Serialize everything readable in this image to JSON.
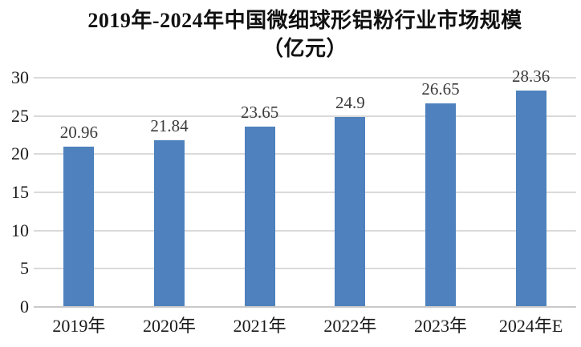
{
  "chart_data": {
    "type": "bar",
    "title": "2019年-2024年中国微细球形铝粉行业市场规模",
    "subtitle": "（亿元）",
    "categories": [
      "2019年",
      "2020年",
      "2021年",
      "2022年",
      "2023年",
      "2024年E"
    ],
    "values": [
      20.96,
      21.84,
      23.65,
      24.9,
      26.65,
      28.36
    ],
    "value_labels": [
      "20.96",
      "21.84",
      "23.65",
      "24.9",
      "26.65",
      "28.36"
    ],
    "xlabel": "",
    "ylabel": "",
    "ylim": [
      0,
      30
    ],
    "yticks": [
      0,
      5,
      10,
      15,
      20,
      25,
      30
    ],
    "grid": true,
    "legend_position": "none",
    "bar_color": "#4E81BD",
    "gridline_color": "#DADADA",
    "axis_line_color": "#C9C9C9",
    "value_label_color": "#3b3b3b",
    "tick_label_color": "#1a1a1a",
    "title_color": "#111111"
  }
}
